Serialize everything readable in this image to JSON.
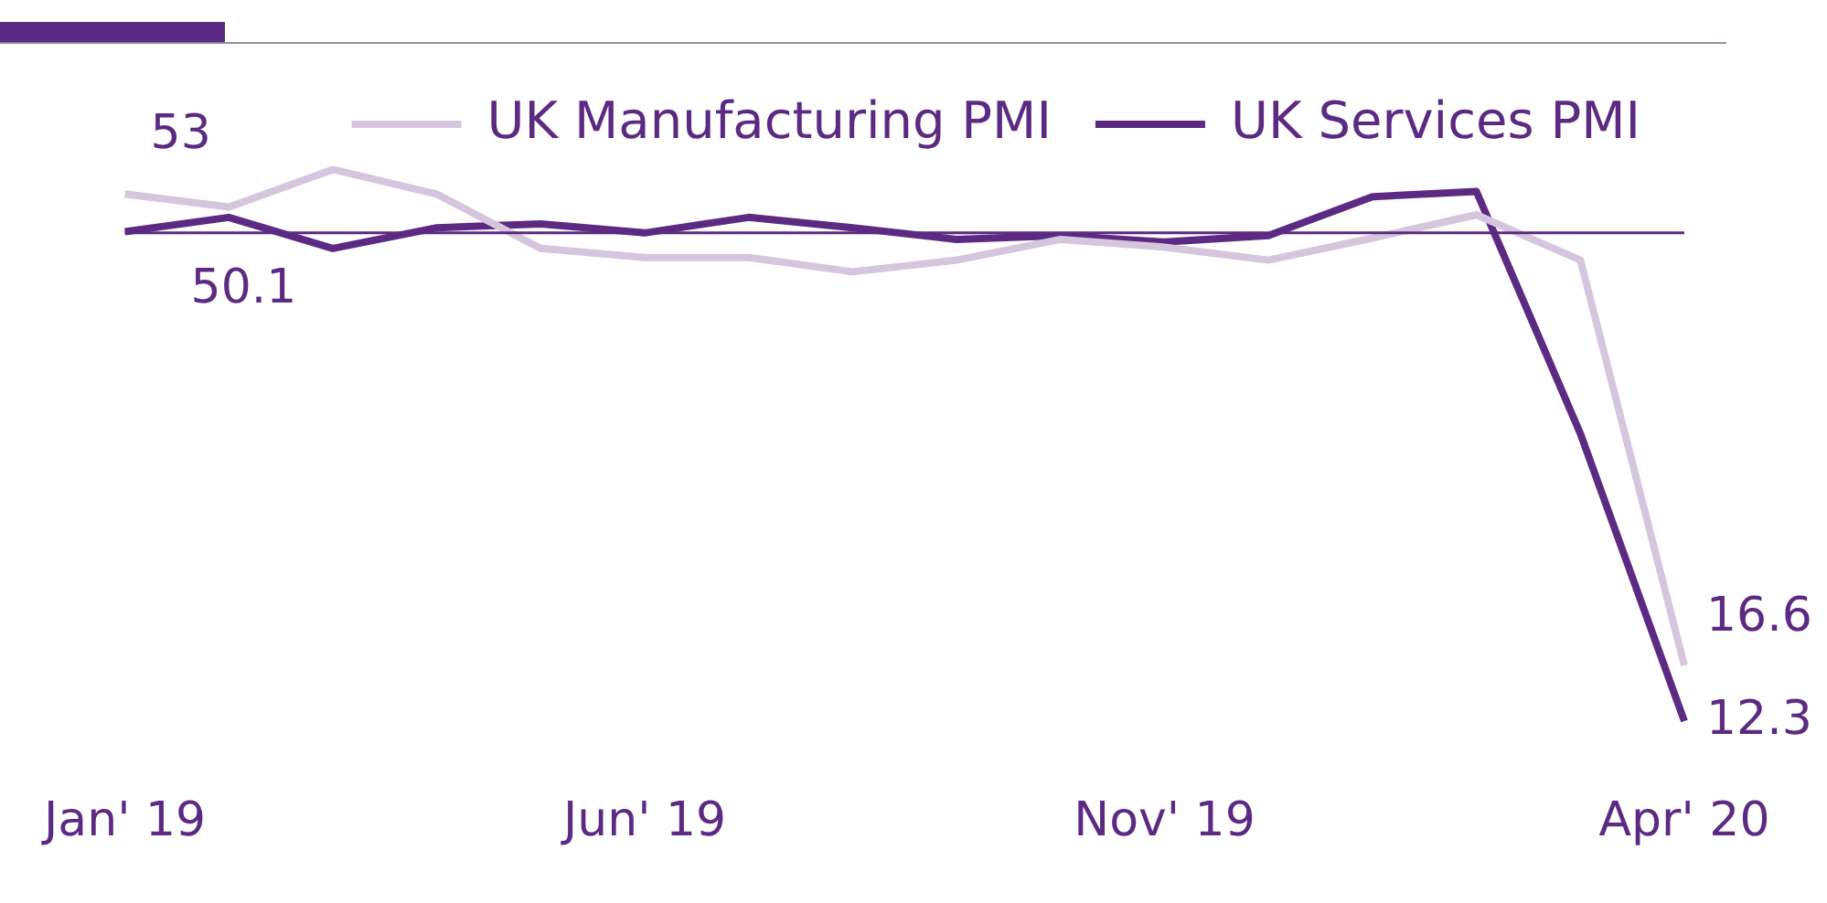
{
  "chart_data": {
    "type": "line",
    "categories": [
      "Jan' 19",
      null,
      null,
      null,
      null,
      "Jun' 19",
      null,
      null,
      null,
      null,
      "Nov' 19",
      null,
      null,
      null,
      null,
      "Apr' 20"
    ],
    "series": [
      {
        "name": "UK Manufacturing PMI",
        "color": "#d5c5dd",
        "values": [
          53,
          52,
          54.9,
          53,
          48.8,
          48.1,
          48.1,
          47,
          47.9,
          49.5,
          48.9,
          47.9,
          49.6,
          51.4,
          47.9,
          16.6
        ],
        "value_labels": [
          "53",
          null,
          null,
          null,
          null,
          null,
          null,
          null,
          null,
          null,
          null,
          null,
          null,
          null,
          null,
          "16.6"
        ]
      },
      {
        "name": "UK Services PMI",
        "color": "#5c2a82",
        "values": [
          50.1,
          51.2,
          48.8,
          50.4,
          50.7,
          50,
          51.2,
          50.4,
          49.5,
          49.8,
          49.3,
          49.8,
          52.8,
          53.2,
          34.5,
          12.3
        ],
        "value_labels": [
          "50.1",
          null,
          null,
          null,
          null,
          null,
          null,
          null,
          null,
          null,
          null,
          null,
          null,
          null,
          null,
          "12.3"
        ]
      }
    ],
    "ref_lines": [
      {
        "axis": "y",
        "value": 50,
        "color": "#5c2a82"
      }
    ],
    "legend": "top",
    "marker": "none",
    "line_style": "solid",
    "grid": false
  }
}
